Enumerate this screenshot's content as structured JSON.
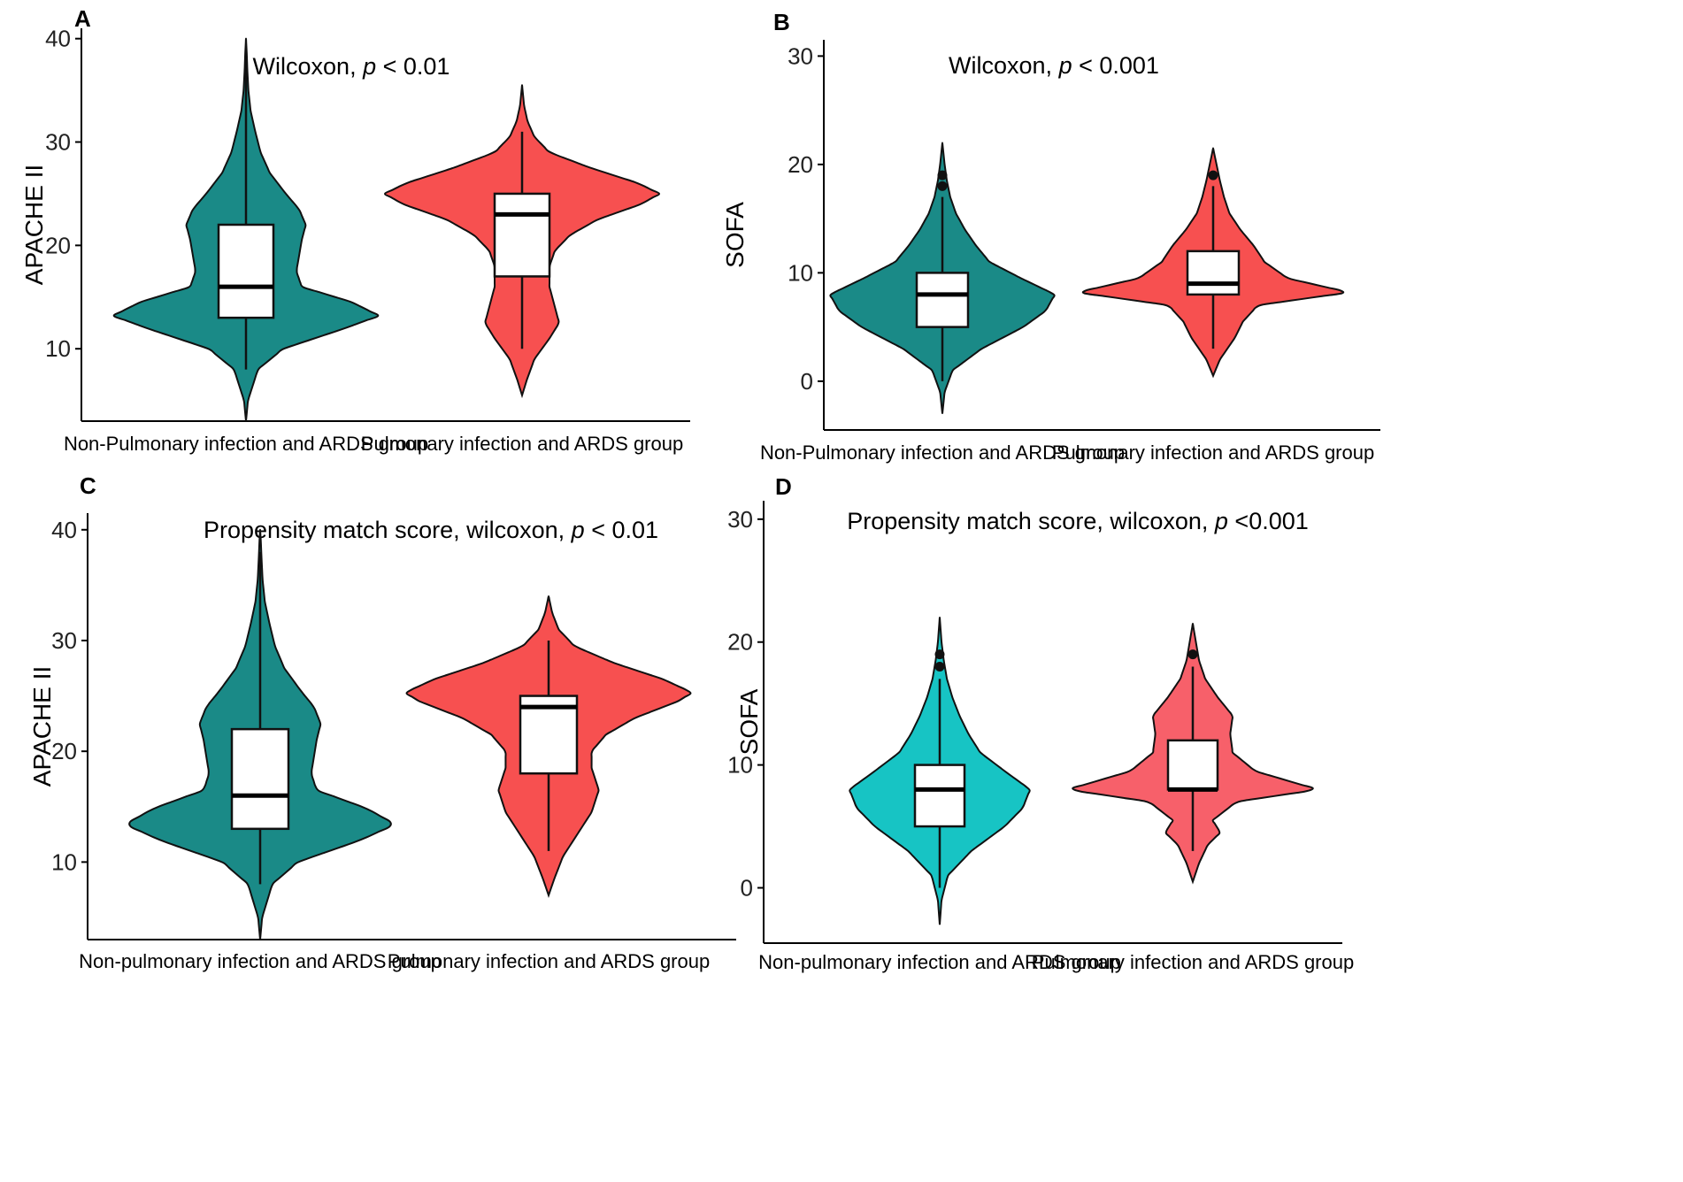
{
  "chart_data": [
    {
      "panel": "A",
      "type": "violin",
      "title": "Wilcoxon, p < 0.01",
      "annotation_prefix": "Wilcoxon, ",
      "annotation_p": "p",
      "annotation_suffix": " < 0.01",
      "ylabel": "APACHE II",
      "xlabel": "",
      "ylim": [
        3,
        41
      ],
      "yticks": [
        10,
        20,
        30,
        40
      ],
      "tick_labels": [
        "10",
        "20",
        "30",
        "40"
      ],
      "categories": [
        "Non-Pulmonary infection and ARDS group",
        "Pulmonary infection and ARDS group"
      ],
      "series": [
        {
          "name": "Non-Pulmonary infection and ARDS group",
          "color": "#1a8a87",
          "range": [
            3,
            40
          ],
          "density_profile": [
            [
              3,
              0.0
            ],
            [
              5,
              0.015
            ],
            [
              8,
              0.09
            ],
            [
              10,
              0.28
            ],
            [
              12,
              0.75
            ],
            [
              13.2,
              1.0
            ],
            [
              14.5,
              0.8
            ],
            [
              16,
              0.42
            ],
            [
              17.5,
              0.38
            ],
            [
              19,
              0.4
            ],
            [
              20.5,
              0.42
            ],
            [
              22,
              0.45
            ],
            [
              23.5,
              0.4
            ],
            [
              25,
              0.3
            ],
            [
              27,
              0.18
            ],
            [
              29,
              0.11
            ],
            [
              31,
              0.07
            ],
            [
              33,
              0.035
            ],
            [
              35,
              0.018
            ],
            [
              37,
              0.01
            ],
            [
              38.5,
              0.006
            ],
            [
              40,
              0.0
            ]
          ],
          "box": {
            "whisker_low": 8,
            "q1": 13,
            "median": 16,
            "q3": 22,
            "whisker_high": 39
          },
          "outliers": []
        },
        {
          "name": "Pulmonary infection and ARDS group",
          "color": "#f75050",
          "range": [
            5.5,
            35.5
          ],
          "density_profile": [
            [
              5.5,
              0.0
            ],
            [
              7,
              0.035
            ],
            [
              9,
              0.09
            ],
            [
              11,
              0.2
            ],
            [
              12.5,
              0.27
            ],
            [
              14,
              0.24
            ],
            [
              16,
              0.2
            ],
            [
              18,
              0.2
            ],
            [
              19.5,
              0.24
            ],
            [
              21,
              0.35
            ],
            [
              22.5,
              0.55
            ],
            [
              24,
              0.87
            ],
            [
              25,
              1.0
            ],
            [
              26,
              0.85
            ],
            [
              27.5,
              0.5
            ],
            [
              29,
              0.2
            ],
            [
              30.5,
              0.09
            ],
            [
              32,
              0.04
            ],
            [
              33.5,
              0.015
            ],
            [
              35.5,
              0.0
            ]
          ],
          "box": {
            "whisker_low": 10,
            "q1": 17,
            "median": 23,
            "q3": 25,
            "whisker_high": 31
          },
          "outliers": []
        }
      ]
    },
    {
      "panel": "B",
      "type": "violin",
      "title": "Wilcoxon, p < 0.001",
      "annotation_prefix": "Wilcoxon, ",
      "annotation_p": "p",
      "annotation_suffix": " < 0.001",
      "ylabel": "SOFA",
      "xlabel": "",
      "ylim": [
        -4.5,
        31.5
      ],
      "yticks": [
        0,
        10,
        20,
        30
      ],
      "tick_labels": [
        "0",
        "10",
        "20",
        "30"
      ],
      "categories": [
        "Non-Pulmonary infection and ARDS group",
        "Pulmonary infection and ARDS group"
      ],
      "series": [
        {
          "name": "Non-Pulmonary infection and ARDS group",
          "color": "#1a8a87",
          "range": [
            -3,
            22
          ],
          "density_profile": [
            [
              -3,
              0.0
            ],
            [
              -1,
              0.02
            ],
            [
              1,
              0.09
            ],
            [
              3,
              0.35
            ],
            [
              5,
              0.72
            ],
            [
              6.5,
              0.92
            ],
            [
              8,
              1.0
            ],
            [
              9.5,
              0.7
            ],
            [
              11,
              0.42
            ],
            [
              12.5,
              0.3
            ],
            [
              14,
              0.2
            ],
            [
              15.5,
              0.12
            ],
            [
              17,
              0.07
            ],
            [
              18.5,
              0.04
            ],
            [
              20,
              0.02
            ],
            [
              22,
              0.0
            ]
          ],
          "box": {
            "whisker_low": 0,
            "q1": 5,
            "median": 8,
            "q3": 10,
            "whisker_high": 17
          },
          "outliers": [
            18,
            19
          ]
        },
        {
          "name": "Pulmonary infection and ARDS group",
          "color": "#f75050",
          "range": [
            0.5,
            21.5
          ],
          "density_profile": [
            [
              0.5,
              0.0
            ],
            [
              2,
              0.05
            ],
            [
              4,
              0.16
            ],
            [
              5.5,
              0.22
            ],
            [
              7,
              0.33
            ],
            [
              8.2,
              1.0
            ],
            [
              9.5,
              0.55
            ],
            [
              11,
              0.38
            ],
            [
              12.5,
              0.3
            ],
            [
              14,
              0.2
            ],
            [
              15.5,
              0.12
            ],
            [
              17,
              0.08
            ],
            [
              18.5,
              0.05
            ],
            [
              20,
              0.025
            ],
            [
              21.5,
              0.0
            ]
          ],
          "box": {
            "whisker_low": 3,
            "q1": 8,
            "median": 9,
            "q3": 12,
            "whisker_high": 18
          },
          "outliers": [
            19
          ]
        }
      ]
    },
    {
      "panel": "C",
      "type": "violin",
      "title": "Propensity match score, wilcoxon, p < 0.01",
      "annotation_prefix": "Propensity match score, wilcoxon, ",
      "annotation_p": "p",
      "annotation_suffix": " < 0.01",
      "ylabel": "APACHE II",
      "xlabel": "",
      "ylim": [
        3,
        41.5
      ],
      "yticks": [
        10,
        20,
        30,
        40
      ],
      "tick_labels": [
        "10",
        "20",
        "30",
        "40"
      ],
      "categories": [
        "Non-pulmonary infection and ARDS group",
        "Pulmonary infection and ARDS group"
      ],
      "series": [
        {
          "name": "Non-pulmonary infection and ARDS group",
          "color": "#1a8a87",
          "range": [
            3,
            40
          ],
          "density_profile": [
            [
              3,
              0.0
            ],
            [
              5,
              0.015
            ],
            [
              8,
              0.09
            ],
            [
              10,
              0.28
            ],
            [
              12,
              0.75
            ],
            [
              13.4,
              1.0
            ],
            [
              14.8,
              0.8
            ],
            [
              16.5,
              0.42
            ],
            [
              18,
              0.38
            ],
            [
              19.5,
              0.4
            ],
            [
              21,
              0.42
            ],
            [
              22.5,
              0.45
            ],
            [
              24,
              0.4
            ],
            [
              25.5,
              0.3
            ],
            [
              27.5,
              0.18
            ],
            [
              29.5,
              0.11
            ],
            [
              31.5,
              0.07
            ],
            [
              33.5,
              0.035
            ],
            [
              35.5,
              0.018
            ],
            [
              37.5,
              0.01
            ],
            [
              39,
              0.005
            ],
            [
              40,
              0.0
            ]
          ],
          "box": {
            "whisker_low": 8,
            "q1": 13,
            "median": 16,
            "q3": 22,
            "whisker_high": 38
          },
          "outliers": []
        },
        {
          "name": "Pulmonary infection and ARDS group",
          "color": "#f75050",
          "range": [
            7,
            34
          ],
          "density_profile": [
            [
              7,
              0.0
            ],
            [
              8.5,
              0.04
            ],
            [
              10.5,
              0.1
            ],
            [
              12.5,
              0.2
            ],
            [
              14.5,
              0.3
            ],
            [
              16.5,
              0.35
            ],
            [
              18.5,
              0.3
            ],
            [
              20,
              0.3
            ],
            [
              21.5,
              0.4
            ],
            [
              23,
              0.6
            ],
            [
              24.5,
              0.9
            ],
            [
              25.3,
              1.0
            ],
            [
              26.5,
              0.8
            ],
            [
              28,
              0.45
            ],
            [
              29.5,
              0.18
            ],
            [
              31,
              0.07
            ],
            [
              32.5,
              0.025
            ],
            [
              34,
              0.0
            ]
          ],
          "box": {
            "whisker_low": 11,
            "q1": 18,
            "median": 24,
            "q3": 25,
            "whisker_high": 30
          },
          "outliers": []
        }
      ]
    },
    {
      "panel": "D",
      "type": "violin",
      "title": "Propensity match score, wilcoxon, p <0.001",
      "annotation_prefix": "Propensity match score, wilcoxon, ",
      "annotation_p": "p",
      "annotation_suffix": " <0.001",
      "ylabel": "SOFA",
      "xlabel": "",
      "ylim": [
        -4.5,
        31.5
      ],
      "yticks": [
        0,
        10,
        20,
        30
      ],
      "tick_labels": [
        "0",
        "10",
        "20",
        "30"
      ],
      "categories": [
        "Non-pulmonary infection and ARDS group",
        "Pulmonary infection and ARDS group"
      ],
      "series": [
        {
          "name": "Non-pulmonary infection and ARDS group",
          "color": "#17c4c4",
          "range": [
            -3,
            22
          ],
          "density_profile": [
            [
              -3,
              0.0
            ],
            [
              -1,
              0.02
            ],
            [
              1,
              0.09
            ],
            [
              3,
              0.35
            ],
            [
              5,
              0.72
            ],
            [
              6.5,
              0.92
            ],
            [
              8,
              1.0
            ],
            [
              9.5,
              0.72
            ],
            [
              11,
              0.45
            ],
            [
              12.5,
              0.32
            ],
            [
              14,
              0.22
            ],
            [
              15.5,
              0.14
            ],
            [
              17,
              0.08
            ],
            [
              18.5,
              0.045
            ],
            [
              20,
              0.02
            ],
            [
              22,
              0.0
            ]
          ],
          "box": {
            "whisker_low": 0,
            "q1": 5,
            "median": 8,
            "q3": 10,
            "whisker_high": 17
          },
          "outliers": [
            18,
            19
          ]
        },
        {
          "name": "Pulmonary infection and ARDS group",
          "color": "#f7606a",
          "range": [
            0.5,
            21.5
          ],
          "density_profile": [
            [
              0.5,
              0.0
            ],
            [
              2,
              0.05
            ],
            [
              3.5,
              0.12
            ],
            [
              4.5,
              0.22
            ],
            [
              5.5,
              0.16
            ],
            [
              7,
              0.35
            ],
            [
              8,
              1.0
            ],
            [
              9.5,
              0.5
            ],
            [
              11,
              0.32
            ],
            [
              12.5,
              0.3
            ],
            [
              14,
              0.32
            ],
            [
              15.5,
              0.2
            ],
            [
              17,
              0.1
            ],
            [
              18.5,
              0.05
            ],
            [
              20,
              0.025
            ],
            [
              21.5,
              0.0
            ]
          ],
          "box": {
            "whisker_low": 3,
            "q1": 8,
            "median": 8,
            "q3": 12,
            "whisker_high": 18
          },
          "outliers": [
            19
          ]
        }
      ]
    }
  ]
}
